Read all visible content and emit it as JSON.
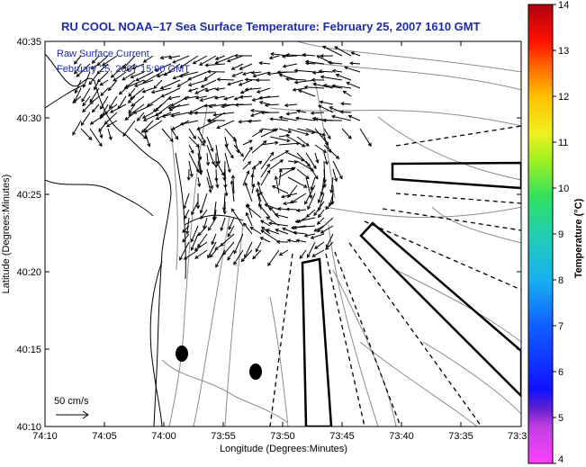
{
  "title": "RU COOL  NOAA–17  Sea Surface Temperature:  February 25, 2007 1610 GMT",
  "annotation": {
    "line1": "Raw Surface Current",
    "line2": "February 25, 2007 15:00 GMT"
  },
  "scale_label": "50 cm/s",
  "axes": {
    "xlabel": "Longitude (Degrees:Minutes)",
    "ylabel": "Latitude (Degrees:Minutes)",
    "x_ticks": [
      "74:10",
      "74:05",
      "74:00",
      "73:55",
      "73:50",
      "73:45",
      "73:40",
      "73:35",
      "73:3"
    ],
    "y_ticks": [
      "40:35",
      "40:30",
      "40:25",
      "40:20",
      "40:15",
      "40:10"
    ]
  },
  "colorbar": {
    "label": "Temperature (°C)",
    "ticks": [
      "14",
      "13",
      "12",
      "11",
      "10",
      "9",
      "8",
      "7",
      "6",
      "5",
      "4"
    ],
    "range": [
      4,
      14
    ]
  },
  "colors": {
    "title": "#1c2bb0",
    "annotation": "#1c2bb0",
    "coast": "#000000",
    "bathymetry": "#8c8c8c"
  }
}
